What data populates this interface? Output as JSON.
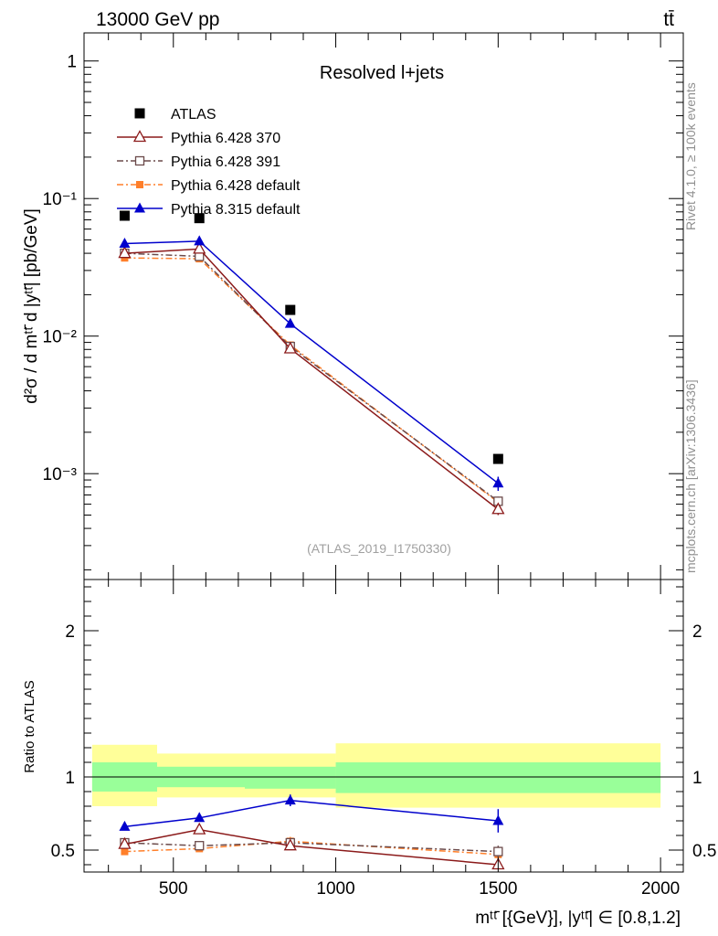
{
  "header": {
    "left_label": "13000 GeV pp",
    "right_label": "tt̄"
  },
  "side_labels": {
    "rivet": "Rivet 4.1.0, ≥ 100k events",
    "mcplots": "mcplots.cern.ch [arXiv:1306.3436]"
  },
  "colors": {
    "atlas": "#000000",
    "p370": "#8b1a1a",
    "p391": "#6b4a4a",
    "p6def": "#ff7f2a",
    "p8def": "#0000cc",
    "band_outer": "#ffff99",
    "band_inner": "#99ff99"
  },
  "chart_data": [
    {
      "type": "scatter",
      "panel": "main",
      "title": "Resolved l+jets",
      "watermark": "(ATLAS_2019_I1750330)",
      "ylabel": "d²σ / d mᵗᵗ̄ d |yᵗᵗ̄| [pb/GeV]",
      "yscale": "log",
      "ylim": [
        0.00017,
        1.6
      ],
      "xlim": [
        225,
        2070
      ],
      "y_tick_labels": [
        "10⁻³",
        "10⁻²",
        "10⁻¹",
        "1"
      ],
      "y_tick_values": [
        0.001,
        0.01,
        0.1,
        1
      ],
      "x": [
        350,
        580,
        860,
        1500
      ],
      "series": [
        {
          "name": "ATLAS",
          "key": "atlas",
          "marker": "square-filled",
          "line": "none",
          "values": [
            0.075,
            0.072,
            0.0155,
            0.00128
          ],
          "errors": [
            0,
            0,
            0,
            0
          ]
        },
        {
          "name": "Pythia 6.428 370",
          "key": "p370",
          "marker": "triangle-open",
          "line": "solid",
          "values": [
            0.04,
            0.043,
            0.0081,
            0.00055
          ],
          "errors": [
            0.001,
            0.001,
            0.0003,
            5e-05
          ]
        },
        {
          "name": "Pythia 6.428 391",
          "key": "p391",
          "marker": "square-open",
          "line": "dashdot",
          "values": [
            0.04,
            0.038,
            0.0084,
            0.00063
          ],
          "errors": [
            0.001,
            0.001,
            0.0003,
            5e-05
          ]
        },
        {
          "name": "Pythia 6.428 default",
          "key": "p6def",
          "marker": "square-filled-small",
          "line": "dashdot",
          "values": [
            0.037,
            0.0365,
            0.0086,
            0.00062
          ],
          "errors": [
            0.001,
            0.001,
            0.0003,
            5e-05
          ]
        },
        {
          "name": "Pythia 8.315 default",
          "key": "p8def",
          "marker": "triangle-filled",
          "line": "solid",
          "values": [
            0.047,
            0.049,
            0.0123,
            0.00085
          ],
          "errors": [
            0.001,
            0.001,
            0.0004,
            0.0001
          ]
        }
      ]
    },
    {
      "type": "scatter",
      "panel": "ratio",
      "ylabel": "Ratio to ATLAS",
      "xlabel": "mᵗᵗ̄ [{GeV}], |yᵗᵗ̄| ∈ [0.8,1.2]",
      "ylim": [
        0.35,
        2.35
      ],
      "xlim": [
        225,
        2070
      ],
      "x_tick_labels": [
        "500",
        "1000",
        "1500",
        "2000"
      ],
      "x_tick_values": [
        500,
        1000,
        1500,
        2000
      ],
      "y_tick_labels": [
        "0.5",
        "1",
        "2"
      ],
      "y_tick_values": [
        0.5,
        1,
        2
      ],
      "bins": [
        {
          "lo": 250,
          "hi": 450,
          "inner": [
            0.9,
            1.1
          ],
          "outer": [
            0.8,
            1.22
          ]
        },
        {
          "lo": 450,
          "hi": 720,
          "inner": [
            0.93,
            1.07
          ],
          "outer": [
            0.86,
            1.16
          ]
        },
        {
          "lo": 720,
          "hi": 1000,
          "inner": [
            0.92,
            1.07
          ],
          "outer": [
            0.86,
            1.16
          ]
        },
        {
          "lo": 1000,
          "hi": 2000,
          "inner": [
            0.89,
            1.1
          ],
          "outer": [
            0.79,
            1.23
          ]
        }
      ],
      "x": [
        350,
        580,
        860,
        1500
      ],
      "series": [
        {
          "name": "Pythia 6.428 370",
          "key": "p370",
          "marker": "triangle-open",
          "line": "solid",
          "values": [
            0.54,
            0.64,
            0.53,
            0.4
          ],
          "errors": [
            0.02,
            0.02,
            0.03,
            0.02
          ]
        },
        {
          "name": "Pythia 6.428 391",
          "key": "p391",
          "marker": "square-open",
          "line": "dashdot",
          "values": [
            0.55,
            0.53,
            0.55,
            0.49
          ],
          "errors": [
            0.02,
            0.02,
            0.03,
            0.04
          ]
        },
        {
          "name": "Pythia 6.428 default",
          "key": "p6def",
          "marker": "square-filled-small",
          "line": "dashdot",
          "values": [
            0.49,
            0.51,
            0.56,
            0.47
          ],
          "errors": [
            0.02,
            0.02,
            0.03,
            0.04
          ]
        },
        {
          "name": "Pythia 8.315 default",
          "key": "p8def",
          "marker": "triangle-filled",
          "line": "solid",
          "values": [
            0.66,
            0.72,
            0.84,
            0.7
          ],
          "errors": [
            0.02,
            0.02,
            0.04,
            0.08
          ]
        }
      ]
    }
  ]
}
